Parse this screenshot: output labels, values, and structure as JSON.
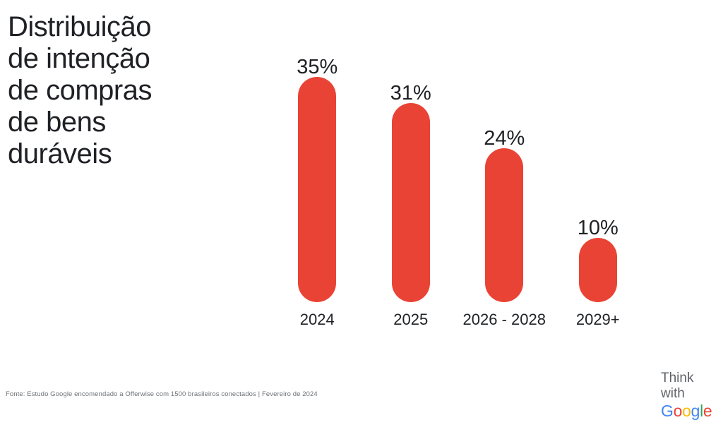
{
  "header": {
    "title_lines": [
      "Distribuição",
      "de intenção",
      "de compras",
      "de bens",
      "duráveis"
    ],
    "title_color": "#1f2125"
  },
  "chart_data": {
    "type": "bar",
    "title": "Distribuição de intenção de compras de bens duráveis",
    "categories": [
      "2024",
      "2025",
      "2026 - 2028",
      "2029+"
    ],
    "values": [
      35,
      31,
      24,
      10
    ],
    "value_labels": [
      "35%",
      "31%",
      "24%",
      "10%"
    ],
    "xlabel": "",
    "ylabel": "",
    "ylim": [
      0,
      40
    ],
    "unit": "%",
    "orientation": "vertical",
    "bar_style": "rounded-pill",
    "bar_color": "#E94335",
    "label_color": "#1f2125",
    "grid": false,
    "legend": "none"
  },
  "footer": {
    "source_note": "Fonte: Estudo Google encomendado a Offerwise com 1500 brasileiros conectados | Fevereiro de 2024"
  },
  "footer_logo": {
    "line1": "Think",
    "line2": "with",
    "text_color": "#5f6368",
    "google_letters": [
      {
        "char": "G",
        "color": "#4285F4"
      },
      {
        "char": "o",
        "color": "#EA4335"
      },
      {
        "char": "o",
        "color": "#FBBC04"
      },
      {
        "char": "g",
        "color": "#4285F4"
      },
      {
        "char": "l",
        "color": "#34A853"
      },
      {
        "char": "e",
        "color": "#EA4335"
      }
    ]
  }
}
